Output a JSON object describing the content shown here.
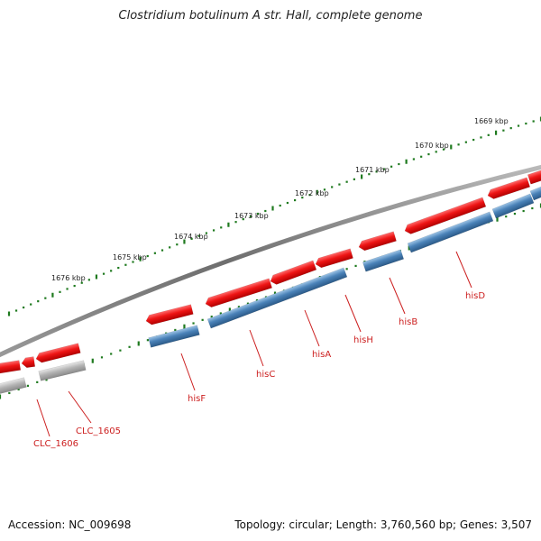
{
  "title": "Clostridium botulinum A str. Hall, complete genome",
  "footer": {
    "accession": "Accession: NC_009698",
    "summary": "Topology: circular; Length: 3,760,560 bp; Genes: 3,507"
  },
  "colors": {
    "forward_feature": "#e01818",
    "gene_blue": "#3f7ab0",
    "gene_grey": "#aaaaaa",
    "backbone": "#777777",
    "ticks": "#1f7a1f",
    "label": "#cc1f1f"
  },
  "position_ruler": {
    "unit": "kbp",
    "labels": [
      "1676 kbp",
      "1675 kbp",
      "1674 kbp",
      "1673 kbp",
      "1672 kbp",
      "1671 kbp",
      "1670 kbp",
      "1669 kbp"
    ]
  },
  "gene_labels": [
    "CLC_1606",
    "CLC_1605",
    "hisF",
    "hisC",
    "hisA",
    "hisH",
    "hisB",
    "hisD"
  ]
}
